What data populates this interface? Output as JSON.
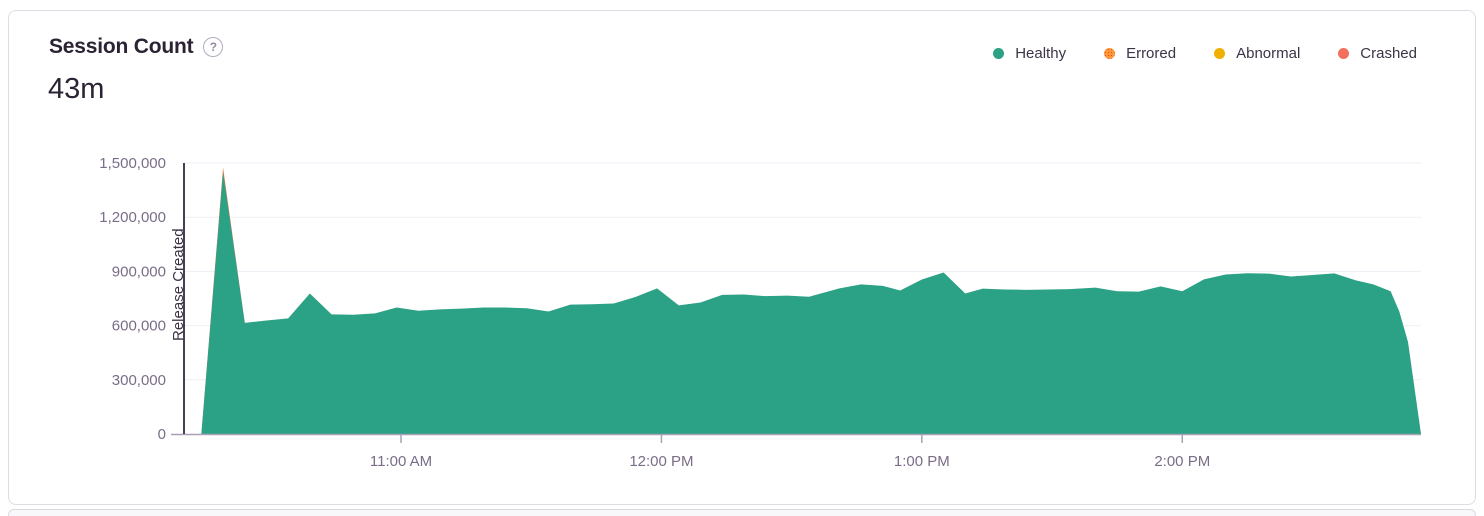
{
  "card": {
    "title": "Session Count",
    "help_icon": "?",
    "big_number": "43m"
  },
  "legend": {
    "items": [
      {
        "label": "Healthy",
        "color": "#2ba185",
        "pattern": "solid"
      },
      {
        "label": "Errored",
        "color": "#ff9838",
        "pattern": "dotted"
      },
      {
        "label": "Abnormal",
        "color": "#f0b000",
        "pattern": "solid"
      },
      {
        "label": "Crashed",
        "color": "#f2705c",
        "pattern": "solid"
      }
    ]
  },
  "chart_data": {
    "type": "area",
    "title": "Session Count",
    "big_number": "43m",
    "stacked": true,
    "grid": true,
    "grid_color": "#f0eef4",
    "axis_color": "#aaa0b6",
    "tick_label_color": "#7a6d87",
    "legend_position": "top-right",
    "ylim": [
      0,
      1500000
    ],
    "yticks": [
      0,
      300000,
      600000,
      900000,
      1200000,
      1500000
    ],
    "ytick_labels": [
      "0",
      "300,000",
      "600,000",
      "900,000",
      "1,200,000",
      "1,500,000"
    ],
    "x_domain": [
      "10:10",
      "14:55"
    ],
    "xticks": [
      {
        "t": "11:00",
        "label": "11:00 AM"
      },
      {
        "t": "12:00",
        "label": "12:00 PM"
      },
      {
        "t": "13:00",
        "label": "1:00 PM"
      },
      {
        "t": "14:00",
        "label": "2:00 PM"
      }
    ],
    "annotation": {
      "time": "10:10",
      "label": "Release Created",
      "color": "#473e52"
    },
    "series": [
      {
        "name": "Healthy",
        "color": "#2ba185",
        "points": [
          [
            "10:14",
            0
          ],
          [
            "10:19",
            1450000
          ],
          [
            "10:24",
            615000
          ],
          [
            "10:29",
            628000
          ],
          [
            "10:34",
            640000
          ],
          [
            "10:39",
            778000
          ],
          [
            "10:44",
            662000
          ],
          [
            "10:49",
            660000
          ],
          [
            "10:54",
            668000
          ],
          [
            "10:59",
            700000
          ],
          [
            "11:04",
            682000
          ],
          [
            "11:09",
            690000
          ],
          [
            "11:14",
            694000
          ],
          [
            "11:19",
            700000
          ],
          [
            "11:24",
            700000
          ],
          [
            "11:29",
            696000
          ],
          [
            "11:34",
            678000
          ],
          [
            "11:39",
            716000
          ],
          [
            "11:44",
            718000
          ],
          [
            "11:49",
            722000
          ],
          [
            "11:54",
            758000
          ],
          [
            "11:59",
            806000
          ],
          [
            "12:04",
            712000
          ],
          [
            "12:09",
            728000
          ],
          [
            "12:14",
            770000
          ],
          [
            "12:19",
            772000
          ],
          [
            "12:24",
            763000
          ],
          [
            "12:29",
            766000
          ],
          [
            "12:34",
            760000
          ],
          [
            "12:41",
            806000
          ],
          [
            "12:46",
            828000
          ],
          [
            "12:51",
            820000
          ],
          [
            "12:55",
            794000
          ],
          [
            "13:00",
            855000
          ],
          [
            "13:05",
            894000
          ],
          [
            "13:10",
            778000
          ],
          [
            "13:14",
            805000
          ],
          [
            "13:19",
            800000
          ],
          [
            "13:24",
            798000
          ],
          [
            "13:29",
            800000
          ],
          [
            "13:34",
            802000
          ],
          [
            "13:40",
            810000
          ],
          [
            "13:45",
            790000
          ],
          [
            "13:50",
            788000
          ],
          [
            "13:55",
            817000
          ],
          [
            "14:00",
            790000
          ],
          [
            "14:05",
            856000
          ],
          [
            "14:10",
            883000
          ],
          [
            "14:15",
            890000
          ],
          [
            "14:20",
            888000
          ],
          [
            "14:25",
            872000
          ],
          [
            "14:30",
            880000
          ],
          [
            "14:35",
            889000
          ],
          [
            "14:40",
            850000
          ],
          [
            "14:44",
            828000
          ],
          [
            "14:48",
            790000
          ],
          [
            "14:50",
            678000
          ],
          [
            "14:52",
            510000
          ],
          [
            "14:55",
            0
          ]
        ]
      },
      {
        "name": "Errored",
        "color": "#f07e4f",
        "points": [
          [
            "10:14",
            0
          ],
          [
            "10:19",
            1475000
          ],
          [
            "10:24",
            615000
          ]
        ]
      }
    ]
  }
}
